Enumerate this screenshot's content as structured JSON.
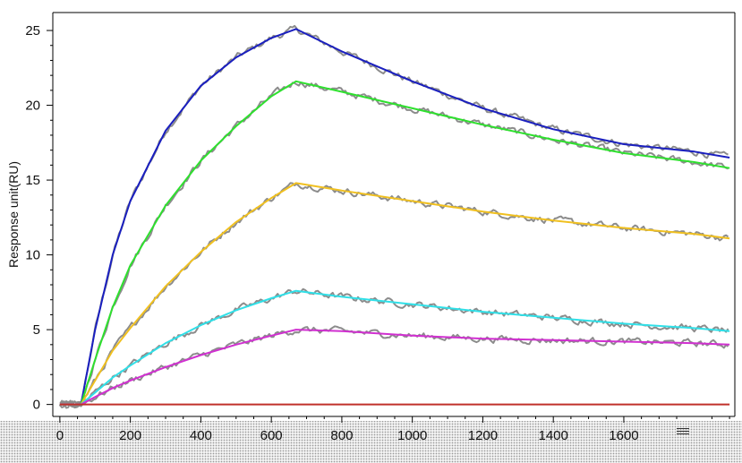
{
  "chart_data": {
    "type": "line",
    "title": "",
    "xlabel": "",
    "ylabel": "Response unit(RU)",
    "xlim": [
      -20,
      1915
    ],
    "ylim": [
      -0.8,
      26.2
    ],
    "xticks": [
      0,
      200,
      400,
      600,
      800,
      1000,
      1200,
      1400,
      1600
    ],
    "yticks": [
      0,
      5,
      10,
      15,
      20,
      25
    ],
    "grid": false,
    "legend": "none",
    "association_start_s": 60,
    "dissociation_start_s": 670,
    "end_s": 1900,
    "series": [
      {
        "color": "#1a1fbf",
        "kind": "fit",
        "peak": 25.1,
        "end": 16.5,
        "rise_shape": "saturating",
        "points": [
          [
            0,
            0
          ],
          [
            60,
            0
          ],
          [
            100,
            5.0
          ],
          [
            150,
            10.0
          ],
          [
            200,
            13.6
          ],
          [
            300,
            18.3
          ],
          [
            400,
            21.3
          ],
          [
            500,
            23.2
          ],
          [
            600,
            24.5
          ],
          [
            670,
            25.1
          ],
          [
            800,
            23.6
          ],
          [
            1000,
            21.6
          ],
          [
            1200,
            19.8
          ],
          [
            1400,
            18.4
          ],
          [
            1600,
            17.4
          ],
          [
            1800,
            16.9
          ],
          [
            1900,
            16.5
          ]
        ]
      },
      {
        "color": "#2ee02e",
        "kind": "fit",
        "peak": 21.6,
        "end": 15.8,
        "rise_shape": "saturating",
        "points": [
          [
            0,
            0
          ],
          [
            60,
            0
          ],
          [
            100,
            3.0
          ],
          [
            150,
            6.5
          ],
          [
            200,
            9.3
          ],
          [
            300,
            13.3
          ],
          [
            400,
            16.3
          ],
          [
            500,
            18.6
          ],
          [
            600,
            20.6
          ],
          [
            670,
            21.6
          ],
          [
            800,
            20.9
          ],
          [
            1000,
            19.8
          ],
          [
            1200,
            18.7
          ],
          [
            1400,
            17.7
          ],
          [
            1600,
            16.8
          ],
          [
            1800,
            16.2
          ],
          [
            1900,
            15.8
          ]
        ]
      },
      {
        "color": "#f0c020",
        "kind": "fit",
        "peak": 14.8,
        "end": 11.1,
        "rise_shape": "near-linear",
        "points": [
          [
            0,
            0
          ],
          [
            60,
            0
          ],
          [
            100,
            1.6
          ],
          [
            150,
            3.6
          ],
          [
            200,
            5.1
          ],
          [
            300,
            7.9
          ],
          [
            400,
            10.2
          ],
          [
            500,
            12.2
          ],
          [
            600,
            13.8
          ],
          [
            670,
            14.8
          ],
          [
            800,
            14.3
          ],
          [
            1000,
            13.6
          ],
          [
            1200,
            12.9
          ],
          [
            1400,
            12.3
          ],
          [
            1600,
            11.8
          ],
          [
            1800,
            11.4
          ],
          [
            1900,
            11.1
          ]
        ]
      },
      {
        "color": "#30e0e8",
        "kind": "fit",
        "peak": 7.6,
        "end": 4.9,
        "rise_shape": "near-linear",
        "points": [
          [
            0,
            0
          ],
          [
            60,
            0
          ],
          [
            100,
            0.8
          ],
          [
            150,
            1.8
          ],
          [
            200,
            2.6
          ],
          [
            300,
            4.1
          ],
          [
            400,
            5.3
          ],
          [
            500,
            6.3
          ],
          [
            600,
            7.1
          ],
          [
            670,
            7.6
          ],
          [
            800,
            7.2
          ],
          [
            1000,
            6.7
          ],
          [
            1200,
            6.2
          ],
          [
            1400,
            5.8
          ],
          [
            1600,
            5.4
          ],
          [
            1800,
            5.1
          ],
          [
            1900,
            4.9
          ]
        ]
      },
      {
        "color": "#d030d0",
        "kind": "fit",
        "peak": 5.0,
        "end": 4.0,
        "rise_shape": "linear",
        "points": [
          [
            0,
            0
          ],
          [
            60,
            0
          ],
          [
            100,
            0.5
          ],
          [
            150,
            1.1
          ],
          [
            200,
            1.6
          ],
          [
            300,
            2.5
          ],
          [
            400,
            3.3
          ],
          [
            500,
            4.0
          ],
          [
            600,
            4.6
          ],
          [
            670,
            5.0
          ],
          [
            800,
            4.9
          ],
          [
            1000,
            4.6
          ],
          [
            1200,
            4.4
          ],
          [
            1400,
            4.3
          ],
          [
            1600,
            4.2
          ],
          [
            1800,
            4.1
          ],
          [
            1900,
            4.0
          ]
        ]
      },
      {
        "color": "#c0302a",
        "kind": "fit",
        "peak": 0.0,
        "end": 0.0,
        "rise_shape": "flat",
        "points": [
          [
            0,
            0
          ],
          [
            1900,
            0
          ]
        ]
      }
    ],
    "raw_traces_color": "#8c8c8c"
  }
}
